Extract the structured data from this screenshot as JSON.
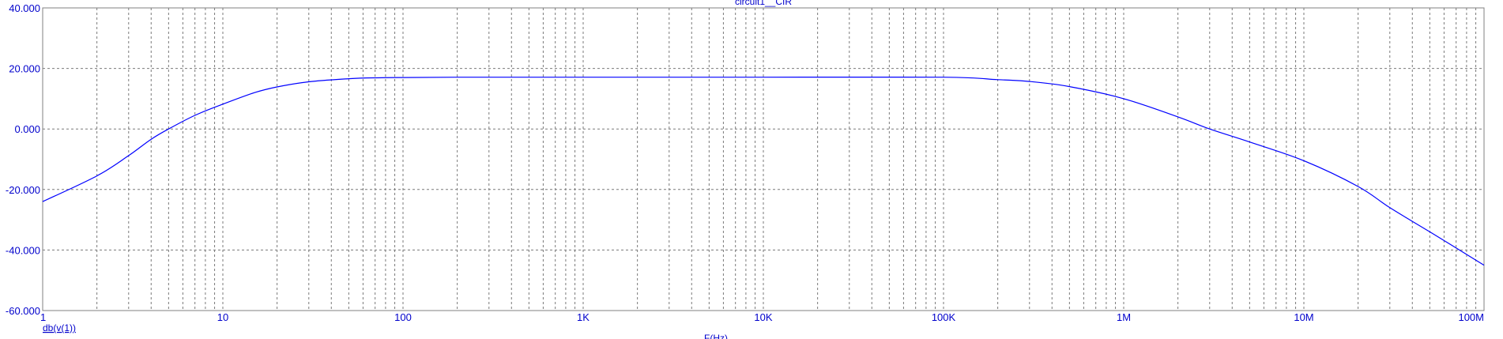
{
  "chart_data": {
    "type": "line",
    "title": "circuit1__CIR",
    "xlabel": "F(Hz)",
    "ylabel": "",
    "x_scale": "log",
    "xlim": [
      1,
      100000000
    ],
    "ylim": [
      -60,
      40
    ],
    "grid": true,
    "x_tick_labels": [
      "1",
      "10",
      "100",
      "1K",
      "10K",
      "100K",
      "1M",
      "10M",
      "100M"
    ],
    "y_tick_labels": [
      "40.000",
      "20.000",
      "0.000",
      "-20.000",
      "-40.000",
      "-60.000"
    ],
    "legend": [
      "db(v(1))"
    ],
    "series": [
      {
        "name": "db(v(1))",
        "color": "#0000ff",
        "x": [
          1,
          2,
          3,
          4,
          5,
          7,
          10,
          15,
          20,
          30,
          50,
          70,
          100,
          200,
          500,
          1000,
          10000,
          100000,
          200000,
          300000,
          500000,
          1000000,
          2000000,
          3000000,
          5000000,
          10000000,
          20000000,
          30000000,
          50000000,
          100000000
        ],
        "y": [
          -24.0,
          -15.5,
          -8.8,
          -3.4,
          0.0,
          4.5,
          8.2,
          12.0,
          13.9,
          15.6,
          16.6,
          16.9,
          17.0,
          17.1,
          17.1,
          17.1,
          17.1,
          17.1,
          16.3,
          15.7,
          14.0,
          10.0,
          4.0,
          0.0,
          -4.3,
          -10.5,
          -19.0,
          -26.0,
          -34.0,
          -45.0
        ]
      }
    ]
  }
}
